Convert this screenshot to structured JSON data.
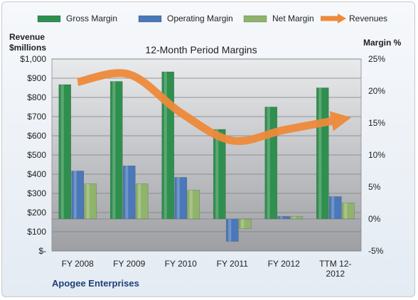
{
  "chart_data": {
    "type": "bar",
    "title": "12-Month Period Margins",
    "footnote": "Apogee Enterprises",
    "categories": [
      "FY 2008",
      "FY 2009",
      "FY 2010",
      "FY 2011",
      "FY 2012",
      "TTM 12-2012"
    ],
    "left_axis": {
      "label_line1": "Revenue",
      "label_line2": "$millions",
      "range": [
        0,
        1000
      ],
      "ticks": [
        0,
        100,
        200,
        300,
        400,
        500,
        600,
        700,
        800,
        900,
        1000
      ],
      "tick_labels": [
        "$-",
        "$100",
        "$200",
        "$300",
        "$400",
        "$500",
        "$600",
        "$700",
        "$800",
        "$900",
        "$1,000"
      ]
    },
    "right_axis": {
      "label": "Margin %",
      "range": [
        -5,
        25
      ],
      "ticks": [
        -5,
        0,
        5,
        10,
        15,
        20,
        25
      ],
      "tick_labels": [
        "-5%",
        "0%",
        "5%",
        "10%",
        "15%",
        "20%",
        "25%"
      ]
    },
    "series": [
      {
        "name": "Gross Margin",
        "axis": "right",
        "kind": "bar",
        "color": "#2f8f4e",
        "values": [
          21.0,
          21.5,
          23.0,
          14.0,
          17.5,
          20.5
        ]
      },
      {
        "name": "Operating Margin",
        "axis": "right",
        "kind": "bar",
        "color": "#4a78b8",
        "values": [
          7.5,
          8.3,
          6.5,
          -3.5,
          0.4,
          3.5
        ]
      },
      {
        "name": "Net Margin",
        "axis": "right",
        "kind": "bar",
        "color": "#8fb46a",
        "values": [
          5.5,
          5.5,
          4.5,
          -1.5,
          0.4,
          2.5
        ]
      },
      {
        "name": "Revenues",
        "axis": "left",
        "kind": "line",
        "color": "#ee8a3a",
        "values": [
          880,
          920,
          720,
          575,
          630,
          680
        ]
      }
    ],
    "grid": true,
    "legend_position": "top"
  }
}
